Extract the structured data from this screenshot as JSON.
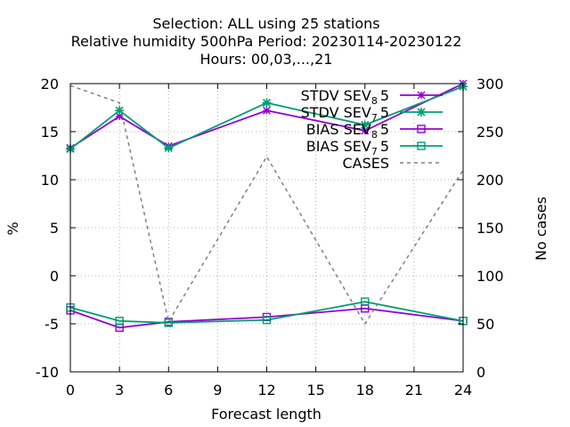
{
  "chart_data": {
    "type": "line",
    "title_lines": [
      "Selection: ALL using    25 stations",
      "Relative humidity 500hPa   Period: 20230114-20230122",
      "Hours:  00,03,...,21"
    ],
    "xlabel": "Forecast length",
    "ylabel": "%",
    "y2label": "No cases",
    "xlim": [
      0,
      24
    ],
    "ylim": [
      -10,
      20
    ],
    "y2lim": [
      0,
      300
    ],
    "xticks": [
      0,
      3,
      6,
      9,
      12,
      15,
      18,
      21,
      24
    ],
    "yticks": [
      -10,
      -5,
      0,
      5,
      10,
      15,
      20
    ],
    "y2ticks": [
      0,
      50,
      100,
      150,
      200,
      250,
      300
    ],
    "grid": true,
    "legend_position": "top-right",
    "series": [
      {
        "name": "STDV SEV",
        "sub": "8",
        "suffix": "5",
        "axis": "y",
        "color": "#9400d3",
        "marker": "star",
        "dash": false,
        "x": [
          0,
          3,
          6,
          12,
          18,
          24
        ],
        "y": [
          13.3,
          16.6,
          13.5,
          17.2,
          15.1,
          20.0
        ]
      },
      {
        "name": "STDV SEV",
        "sub": "7",
        "suffix": "5",
        "axis": "y",
        "color": "#009e73",
        "marker": "asterisk",
        "dash": false,
        "x": [
          0,
          3,
          6,
          12,
          18,
          24
        ],
        "y": [
          13.2,
          17.2,
          13.3,
          18.0,
          15.7,
          19.7
        ]
      },
      {
        "name": "BIAS SEV",
        "sub": "8",
        "suffix": "5",
        "axis": "y",
        "color": "#9400d3",
        "marker": "square",
        "dash": false,
        "x": [
          0,
          3,
          6,
          12,
          18,
          24
        ],
        "y": [
          -3.6,
          -5.4,
          -4.8,
          -4.3,
          -3.4,
          -4.7
        ]
      },
      {
        "name": "BIAS SEV",
        "sub": "7",
        "suffix": "5",
        "axis": "y",
        "color": "#009e73",
        "marker": "square",
        "dash": false,
        "x": [
          0,
          3,
          6,
          12,
          18,
          24
        ],
        "y": [
          -3.3,
          -4.7,
          -4.9,
          -4.6,
          -2.7,
          -4.7
        ]
      },
      {
        "name": "CASES",
        "sub": "",
        "suffix": "",
        "axis": "y2",
        "color": "#808080",
        "marker": "none",
        "dash": true,
        "x": [
          0,
          3,
          6,
          12,
          18,
          24
        ],
        "y": [
          298,
          280,
          52,
          224,
          50,
          210
        ]
      }
    ]
  }
}
